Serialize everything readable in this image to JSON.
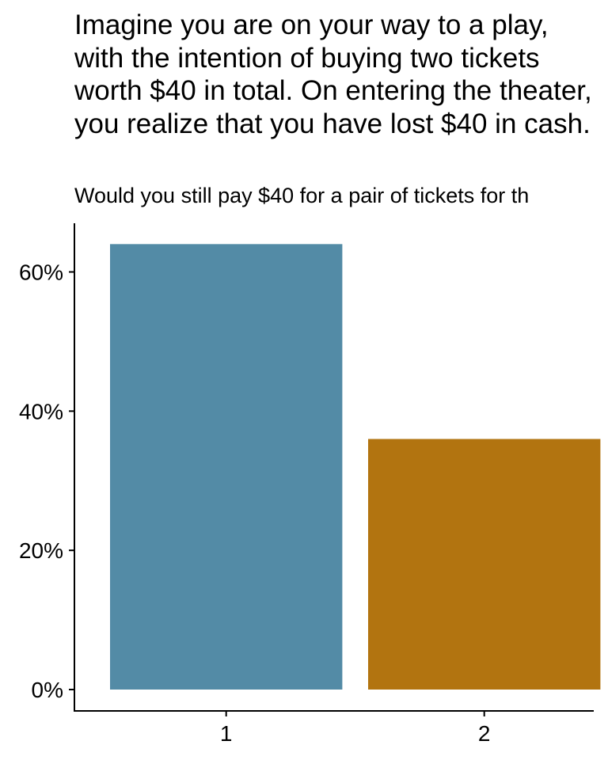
{
  "chart_data": {
    "type": "bar",
    "title": "Imagine you are on your way to a play, with the intention of buying two tickets worth $40 in total. On entering the theater, you realize that you have lost $40 in cash.",
    "subtitle": "Would you still pay $40 for a pair of tickets for th",
    "xlabel": "",
    "ylabel": "",
    "categories": [
      "1",
      "2"
    ],
    "values": [
      0.64,
      0.36
    ],
    "colors": [
      "#538BA6",
      "#B27410"
    ],
    "ylim": [
      0,
      0.67
    ],
    "yticks": [
      0,
      0.2,
      0.4,
      0.6
    ],
    "ytick_labels": [
      "0%",
      "20%",
      "40%",
      "60%"
    ],
    "grid": false,
    "legend": "none"
  }
}
